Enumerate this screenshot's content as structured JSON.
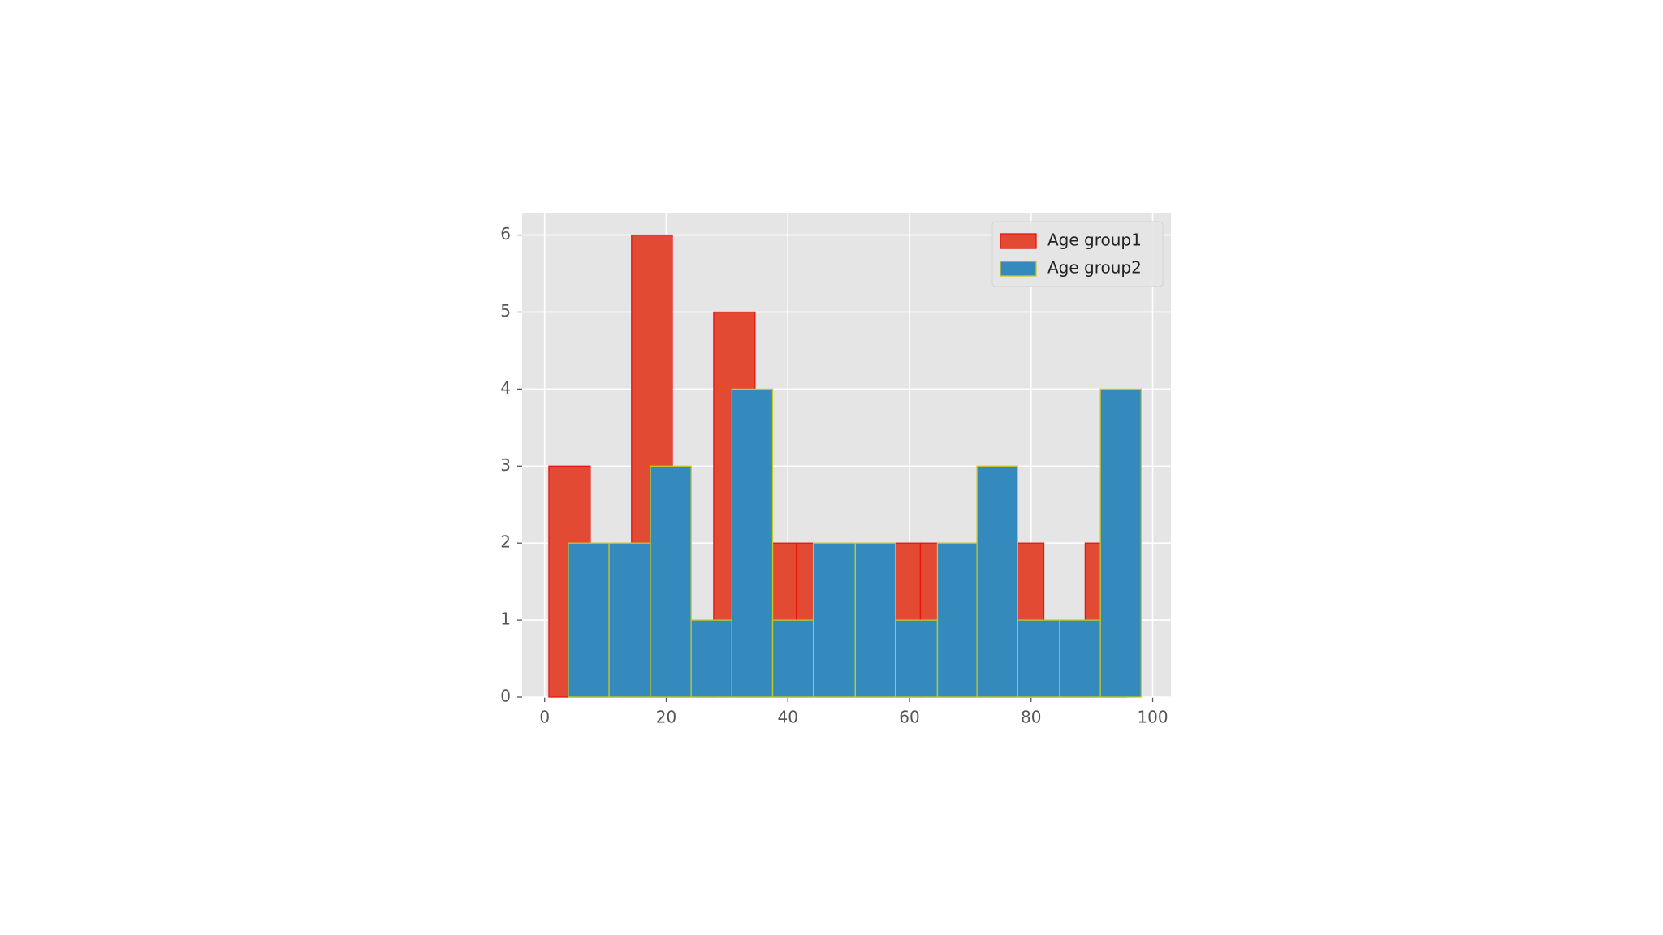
{
  "chart_data": {
    "type": "histogram",
    "series": [
      {
        "name": "Age group1",
        "color": "#E24A33",
        "edgecolor": "#e8140c",
        "bins": [
          0.7,
          7.5,
          14.3,
          21.0,
          27.8,
          34.6,
          41.4,
          48.2,
          55.0,
          61.8,
          68.5,
          75.3,
          82.1,
          88.9,
          95.7
        ],
        "values": [
          3,
          2,
          6,
          1,
          5,
          2,
          2,
          2,
          2,
          2,
          2,
          2,
          1,
          2
        ]
      },
      {
        "name": "Age group2",
        "color": "#348ABD",
        "edgecolor": "#c8c820",
        "bins": [
          3.9,
          10.6,
          17.4,
          24.1,
          30.8,
          37.5,
          44.2,
          51.1,
          57.7,
          64.6,
          71.1,
          77.8,
          84.7,
          91.4,
          98.1
        ],
        "values": [
          2,
          2,
          3,
          1,
          4,
          1,
          2,
          2,
          1,
          2,
          3,
          1,
          1,
          4
        ]
      }
    ],
    "xlim": [
      -3.7,
      103.0
    ],
    "xticks": [
      0,
      20,
      40,
      60,
      80,
      100
    ],
    "ylim": [
      0,
      6.28
    ],
    "yticks": [
      0,
      1,
      2,
      3,
      4,
      5,
      6
    ],
    "grid": true,
    "legend": "upper right"
  }
}
